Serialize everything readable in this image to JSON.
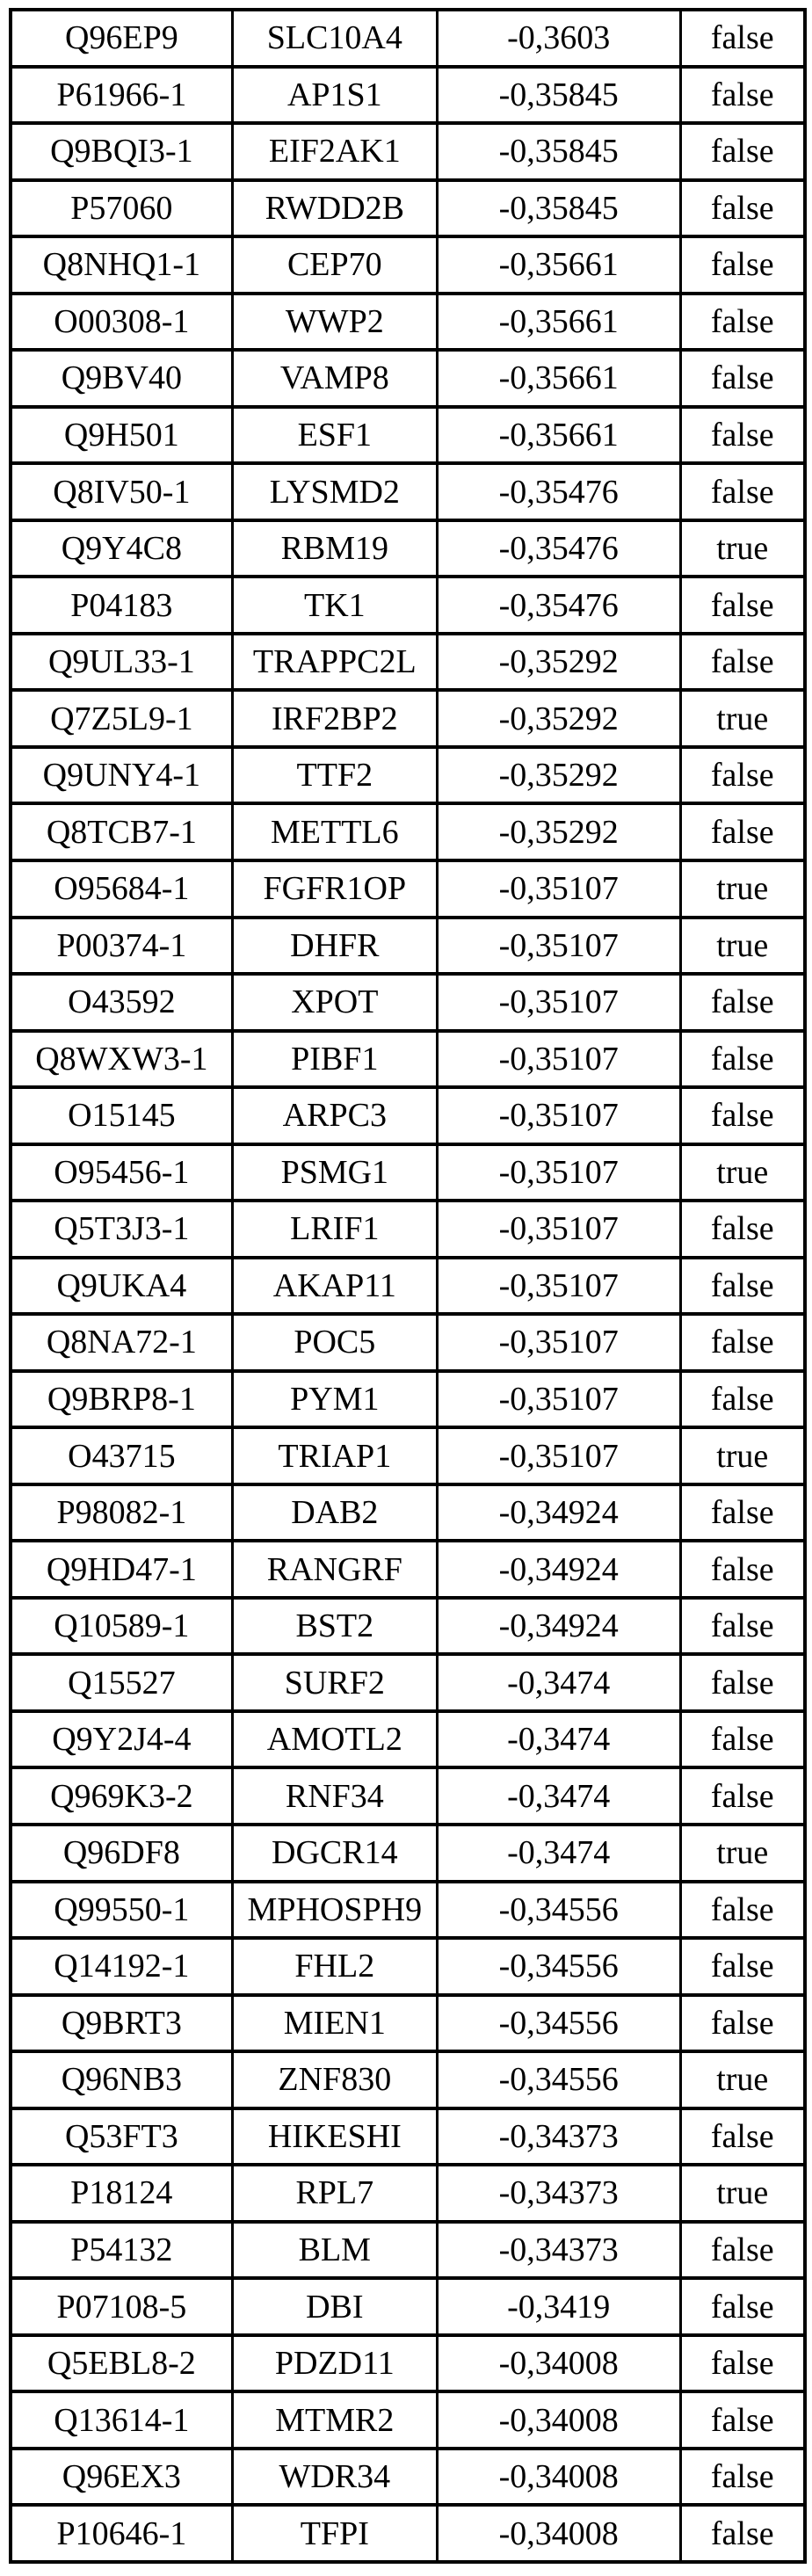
{
  "page": {
    "background_color": "#ffffff",
    "text_color": "#000000",
    "border_color": "#000000"
  },
  "table": {
    "rows": [
      {
        "accession": "Q96EP9",
        "gene": "SLC10A4",
        "score": "-0,3603",
        "flag": "false"
      },
      {
        "accession": "P61966-1",
        "gene": "AP1S1",
        "score": "-0,35845",
        "flag": "false"
      },
      {
        "accession": "Q9BQI3-1",
        "gene": "EIF2AK1",
        "score": "-0,35845",
        "flag": "false"
      },
      {
        "accession": "P57060",
        "gene": "RWDD2B",
        "score": "-0,35845",
        "flag": "false"
      },
      {
        "accession": "Q8NHQ1-1",
        "gene": "CEP70",
        "score": "-0,35661",
        "flag": "false"
      },
      {
        "accession": "O00308-1",
        "gene": "WWP2",
        "score": "-0,35661",
        "flag": "false"
      },
      {
        "accession": "Q9BV40",
        "gene": "VAMP8",
        "score": "-0,35661",
        "flag": "false"
      },
      {
        "accession": "Q9H501",
        "gene": "ESF1",
        "score": "-0,35661",
        "flag": "false"
      },
      {
        "accession": "Q8IV50-1",
        "gene": "LYSMD2",
        "score": "-0,35476",
        "flag": "false"
      },
      {
        "accession": "Q9Y4C8",
        "gene": "RBM19",
        "score": "-0,35476",
        "flag": "true"
      },
      {
        "accession": "P04183",
        "gene": "TK1",
        "score": "-0,35476",
        "flag": "false"
      },
      {
        "accession": "Q9UL33-1",
        "gene": "TRAPPC2L",
        "score": "-0,35292",
        "flag": "false"
      },
      {
        "accession": "Q7Z5L9-1",
        "gene": "IRF2BP2",
        "score": "-0,35292",
        "flag": "true"
      },
      {
        "accession": "Q9UNY4-1",
        "gene": "TTF2",
        "score": "-0,35292",
        "flag": "false"
      },
      {
        "accession": "Q8TCB7-1",
        "gene": "METTL6",
        "score": "-0,35292",
        "flag": "false"
      },
      {
        "accession": "O95684-1",
        "gene": "FGFR1OP",
        "score": "-0,35107",
        "flag": "true"
      },
      {
        "accession": "P00374-1",
        "gene": "DHFR",
        "score": "-0,35107",
        "flag": "true"
      },
      {
        "accession": "O43592",
        "gene": "XPOT",
        "score": "-0,35107",
        "flag": "false"
      },
      {
        "accession": "Q8WXW3-1",
        "gene": "PIBF1",
        "score": "-0,35107",
        "flag": "false"
      },
      {
        "accession": "O15145",
        "gene": "ARPC3",
        "score": "-0,35107",
        "flag": "false"
      },
      {
        "accession": "O95456-1",
        "gene": "PSMG1",
        "score": "-0,35107",
        "flag": "true"
      },
      {
        "accession": "Q5T3J3-1",
        "gene": "LRIF1",
        "score": "-0,35107",
        "flag": "false"
      },
      {
        "accession": "Q9UKA4",
        "gene": "AKAP11",
        "score": "-0,35107",
        "flag": "false"
      },
      {
        "accession": "Q8NA72-1",
        "gene": "POC5",
        "score": "-0,35107",
        "flag": "false"
      },
      {
        "accession": "Q9BRP8-1",
        "gene": "PYM1",
        "score": "-0,35107",
        "flag": "false"
      },
      {
        "accession": "O43715",
        "gene": "TRIAP1",
        "score": "-0,35107",
        "flag": "true"
      },
      {
        "accession": "P98082-1",
        "gene": "DAB2",
        "score": "-0,34924",
        "flag": "false"
      },
      {
        "accession": "Q9HD47-1",
        "gene": "RANGRF",
        "score": "-0,34924",
        "flag": "false"
      },
      {
        "accession": "Q10589-1",
        "gene": "BST2",
        "score": "-0,34924",
        "flag": "false"
      },
      {
        "accession": "Q15527",
        "gene": "SURF2",
        "score": "-0,3474",
        "flag": "false"
      },
      {
        "accession": "Q9Y2J4-4",
        "gene": "AMOTL2",
        "score": "-0,3474",
        "flag": "false"
      },
      {
        "accession": "Q969K3-2",
        "gene": "RNF34",
        "score": "-0,3474",
        "flag": "false"
      },
      {
        "accession": "Q96DF8",
        "gene": "DGCR14",
        "score": "-0,3474",
        "flag": "true"
      },
      {
        "accession": "Q99550-1",
        "gene": "MPHOSPH9",
        "score": "-0,34556",
        "flag": "false"
      },
      {
        "accession": "Q14192-1",
        "gene": "FHL2",
        "score": "-0,34556",
        "flag": "false"
      },
      {
        "accession": "Q9BRT3",
        "gene": "MIEN1",
        "score": "-0,34556",
        "flag": "false"
      },
      {
        "accession": "Q96NB3",
        "gene": "ZNF830",
        "score": "-0,34556",
        "flag": "true"
      },
      {
        "accession": "Q53FT3",
        "gene": "HIKESHI",
        "score": "-0,34373",
        "flag": "false"
      },
      {
        "accession": "P18124",
        "gene": "RPL7",
        "score": "-0,34373",
        "flag": "true"
      },
      {
        "accession": "P54132",
        "gene": "BLM",
        "score": "-0,34373",
        "flag": "false"
      },
      {
        "accession": "P07108-5",
        "gene": "DBI",
        "score": "-0,3419",
        "flag": "false"
      },
      {
        "accession": "Q5EBL8-2",
        "gene": "PDZD11",
        "score": "-0,34008",
        "flag": "false"
      },
      {
        "accession": "Q13614-1",
        "gene": "MTMR2",
        "score": "-0,34008",
        "flag": "false"
      },
      {
        "accession": "Q96EX3",
        "gene": "WDR34",
        "score": "-0,34008",
        "flag": "false"
      },
      {
        "accession": "P10646-1",
        "gene": "TFPI",
        "score": "-0,34008",
        "flag": "false"
      }
    ]
  }
}
